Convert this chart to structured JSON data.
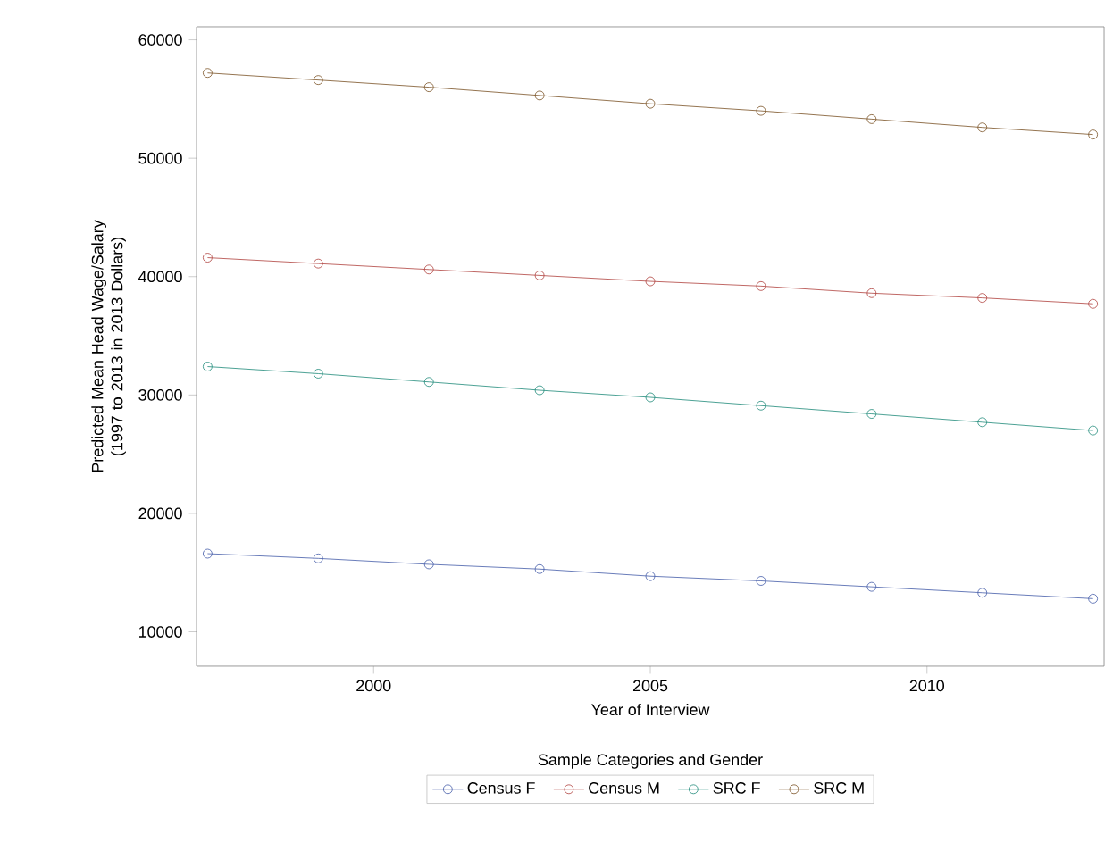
{
  "chart_data": {
    "type": "line",
    "xlabel": "Year of Interview",
    "ylabel": "Predicted Mean Head Wage/Salary (1997 to 2013 in 2013 Dollars)",
    "legend_title": "Sample Categories and Gender",
    "x": [
      1997,
      1999,
      2001,
      2003,
      2005,
      2007,
      2009,
      2011,
      2013
    ],
    "series": [
      {
        "name": "Census F",
        "color": "#445ca8",
        "values": [
          16600,
          16200,
          15700,
          15300,
          14700,
          14300,
          13800,
          13300,
          12800
        ]
      },
      {
        "name": "Census M",
        "color": "#b0413e",
        "values": [
          41600,
          41100,
          40600,
          40100,
          39600,
          39200,
          38600,
          38200,
          37700
        ]
      },
      {
        "name": "SRC F",
        "color": "#1f8a7a",
        "values": [
          32400,
          31800,
          31100,
          30400,
          29800,
          29100,
          28400,
          27700,
          27000
        ]
      },
      {
        "name": "SRC M",
        "color": "#7a5224",
        "values": [
          57200,
          56600,
          56000,
          55300,
          54600,
          54000,
          53300,
          52600,
          52000
        ]
      }
    ],
    "xlim": [
      1996.8,
      2013.2
    ],
    "ylim": [
      7100,
      61100
    ],
    "xticks": [
      2000,
      2005,
      2010
    ],
    "yticks": [
      10000,
      20000,
      30000,
      40000,
      50000,
      60000
    ],
    "grid": false,
    "legend": "bottom",
    "marker": "circle",
    "line_style": "solid"
  }
}
